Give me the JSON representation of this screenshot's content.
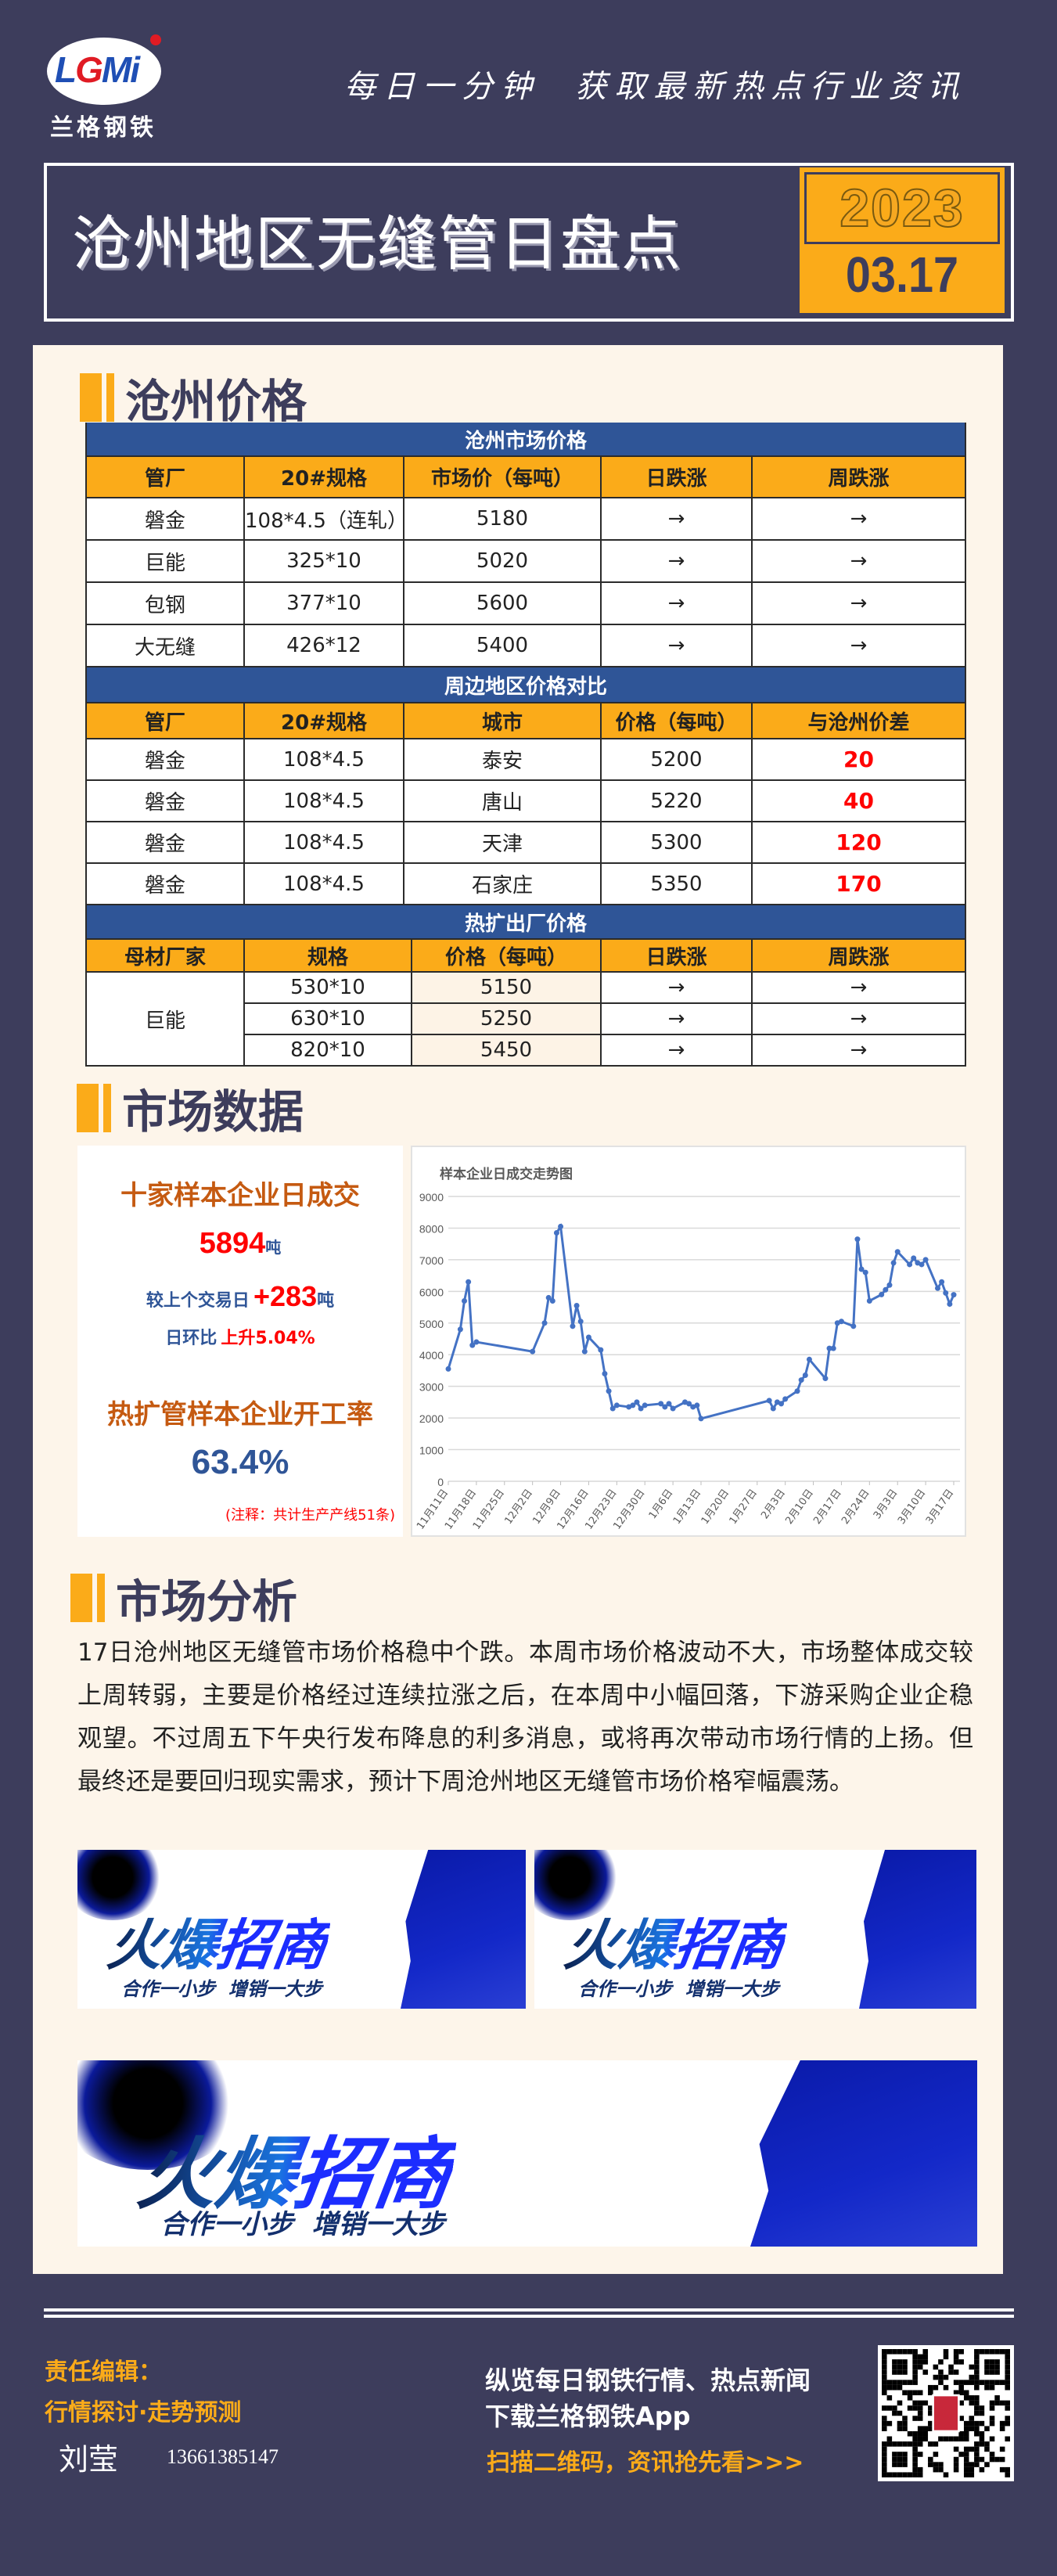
{
  "header": {
    "logo_text": "LGMi",
    "logo_name": "兰格钢铁",
    "slogan": "每日一分钟  获取最新热点行业资讯",
    "title": "沧州地区无缝管日盘点",
    "year": "2023",
    "date": "03.17"
  },
  "sections": {
    "prices": "沧州价格",
    "market_data": "市场数据",
    "analysis": "市场分析"
  },
  "colors": {
    "background": "#3d3d5c",
    "panel": "#fdf5ea",
    "accent": "#fbab19",
    "table_band": "#2f5597",
    "highlight": "#ff0000",
    "stat_title": "#c55a11",
    "stat_blue": "#2f5597",
    "chart_line": "#4472c4"
  },
  "tables": [
    {
      "title": "沧州市场价格",
      "headers": [
        "管厂",
        "20#规格",
        "市场价（每吨）",
        "日跌涨",
        "周跌涨"
      ],
      "rows": [
        [
          "磐金",
          "108*4.5（连轧）",
          "5180",
          "→",
          "→"
        ],
        [
          "巨能",
          "325*10",
          "5020",
          "→",
          "→"
        ],
        [
          "包钢",
          "377*10",
          "5600",
          "→",
          "→"
        ],
        [
          "大无缝",
          "426*12",
          "5400",
          "→",
          "→"
        ]
      ]
    },
    {
      "title": "周边地区价格对比",
      "headers": [
        "管厂",
        "20#规格",
        "城市",
        "价格（每吨）",
        "与沧州价差"
      ],
      "rows": [
        [
          "磐金",
          "108*4.5",
          "泰安",
          "5200",
          "20"
        ],
        [
          "磐金",
          "108*4.5",
          "唐山",
          "5220",
          "40"
        ],
        [
          "磐金",
          "108*4.5",
          "天津",
          "5300",
          "120"
        ],
        [
          "磐金",
          "108*4.5",
          "石家庄",
          "5350",
          "170"
        ]
      ]
    },
    {
      "title": "热扩出厂价格",
      "headers": [
        "母材厂家",
        "规格",
        "价格（每吨）",
        "日跌涨",
        "周跌涨"
      ],
      "merged_first": "巨能",
      "rows": [
        [
          "530*10",
          "5150",
          "→",
          "→"
        ],
        [
          "630*10",
          "5250",
          "→",
          "→"
        ],
        [
          "820*10",
          "5450",
          "→",
          "→"
        ]
      ]
    }
  ],
  "stats": {
    "daily_volume_title": "十家样本企业日成交",
    "daily_volume_value": "5894",
    "unit": "吨",
    "vs_prev_label": "较上个交易日",
    "vs_prev_value": "+283",
    "dod_label": "日环比",
    "dod_value": "上升5.04%",
    "utilization_title": "热扩管样本企业开工率",
    "utilization_value": "63.4%",
    "note": "(注释：共计生产产线51条)"
  },
  "chart_data": {
    "type": "line",
    "title": "样本企业日成交走势图",
    "xlabel": "",
    "ylabel": "",
    "ylim": [
      0,
      9000
    ],
    "yticks": [
      0,
      1000,
      2000,
      3000,
      4000,
      5000,
      6000,
      7000,
      8000,
      9000
    ],
    "xticks": [
      "11月11日",
      "11月18日",
      "11月25日",
      "12月2日",
      "12月9日",
      "12月16日",
      "12月23日",
      "12月30日",
      "1月6日",
      "1月13日",
      "1月20日",
      "1月27日",
      "2月3日",
      "2月10日",
      "2月17日",
      "2月24日",
      "3月3日",
      "3月10日",
      "3月17日"
    ],
    "grid": true,
    "color": "#4472c4",
    "points": [
      [
        "11月11日",
        3550
      ],
      [
        "11月14日",
        4800
      ],
      [
        "11月15日",
        5700
      ],
      [
        "11月16日",
        6300
      ],
      [
        "11月17日",
        4300
      ],
      [
        "11月18日",
        4400
      ],
      [
        "12月2日",
        4100
      ],
      [
        "12月5日",
        5000
      ],
      [
        "12月6日",
        5800
      ],
      [
        "12月7日",
        5700
      ],
      [
        "12月8日",
        7850
      ],
      [
        "12月9日",
        8050
      ],
      [
        "12月12日",
        4900
      ],
      [
        "12月13日",
        5550
      ],
      [
        "12月14日",
        5050
      ],
      [
        "12月15日",
        4100
      ],
      [
        "12月16日",
        4550
      ],
      [
        "12月19日",
        4150
      ],
      [
        "12月20日",
        3400
      ],
      [
        "12月21日",
        2850
      ],
      [
        "12月22日",
        2300
      ],
      [
        "12月23日",
        2400
      ],
      [
        "12月26日",
        2350
      ],
      [
        "12月27日",
        2400
      ],
      [
        "12月28日",
        2500
      ],
      [
        "12月29日",
        2300
      ],
      [
        "12月30日",
        2400
      ],
      [
        "1月3日",
        2450
      ],
      [
        "1月4日",
        2350
      ],
      [
        "1月5日",
        2450
      ],
      [
        "1月6日",
        2300
      ],
      [
        "1月9日",
        2500
      ],
      [
        "1月10日",
        2450
      ],
      [
        "1月11日",
        2350
      ],
      [
        "1月12日",
        2400
      ],
      [
        "1月13日",
        1980
      ],
      [
        "1月30日",
        2550
      ],
      [
        "1月31日",
        2300
      ],
      [
        "2月1日",
        2500
      ],
      [
        "2月2日",
        2450
      ],
      [
        "2月3日",
        2600
      ],
      [
        "2月6日",
        2850
      ],
      [
        "2月7日",
        3200
      ],
      [
        "2月8日",
        3350
      ],
      [
        "2月9日",
        3850
      ],
      [
        "2月13日",
        3250
      ],
      [
        "2月14日",
        4200
      ],
      [
        "2月15日",
        4200
      ],
      [
        "2月16日",
        5000
      ],
      [
        "2月17日",
        5050
      ],
      [
        "2月20日",
        4900
      ],
      [
        "2月21日",
        7650
      ],
      [
        "2月22日",
        6700
      ],
      [
        "2月23日",
        6600
      ],
      [
        "2月24日",
        5700
      ],
      [
        "2月27日",
        5900
      ],
      [
        "2月28日",
        6050
      ],
      [
        "3月1日",
        6200
      ],
      [
        "3月2日",
        6900
      ],
      [
        "3月3日",
        7250
      ],
      [
        "3月6日",
        6850
      ],
      [
        "3月7日",
        7050
      ],
      [
        "3月8日",
        6900
      ],
      [
        "3月9日",
        6850
      ],
      [
        "3月10日",
        7000
      ],
      [
        "3月13日",
        6100
      ],
      [
        "3月14日",
        6300
      ],
      [
        "3月15日",
        5950
      ],
      [
        "3月16日",
        5600
      ],
      [
        "3月17日",
        5894
      ]
    ]
  },
  "analysis_text": "17日沧州地区无缝管市场价格稳中个跌。本周市场价格波动不大，市场整体成交较上周转弱，主要是价格经过连续拉涨之后，在本周中小幅回落，下游采购企业企稳观望。不过周五下午央行发布降息的利多消息，或将再次带动市场行情的上扬。但最终还是要回归现实需求，预计下周沧州地区无缝管市场价格窄幅震荡。",
  "banners": [
    {
      "main": "火爆招商",
      "sub": "合作一小步  增销一大步"
    },
    {
      "main": "火爆招商",
      "sub": "合作一小步  增销一大步"
    },
    {
      "main": "火爆招商",
      "sub": "合作一小步  增销一大步"
    }
  ],
  "footer": {
    "editor_label": "责任编辑：",
    "editor_tagline": "行情探讨·走势预测",
    "editor_name": "刘莹",
    "editor_phone": "13661385147",
    "promo_line1": "纵览每日钢铁行情、热点新闻",
    "promo_line2": "下载兰格钢铁App",
    "promo_cta": "扫描二维码，资讯抢先看>>>",
    "qr_icon": "qr-code-icon"
  }
}
